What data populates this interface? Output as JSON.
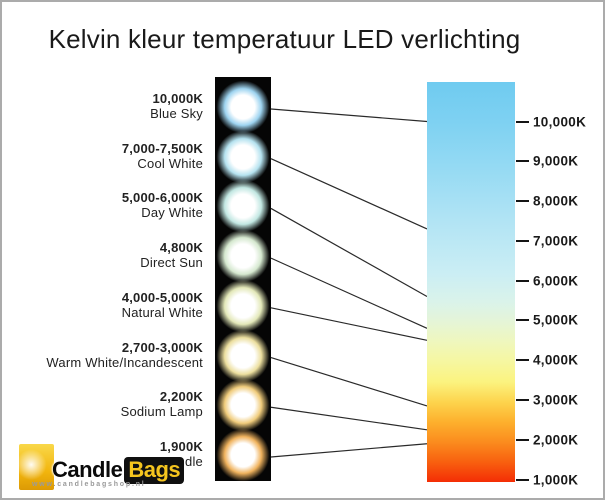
{
  "title": "Kelvin kleur temperatuur LED verlichting",
  "items": [
    {
      "kelvin": "10,000K",
      "name": "Blue Sky",
      "target_kelvin": 10000,
      "glow": "#9ed4f0"
    },
    {
      "kelvin": "7,000-7,500K",
      "name": "Cool White",
      "target_kelvin": 7300,
      "glow": "#b5e2ef"
    },
    {
      "kelvin": "5,000-6,000K",
      "name": "Day White",
      "target_kelvin": 5600,
      "glow": "#c2e7e2"
    },
    {
      "kelvin": "4,800K",
      "name": "Direct Sun",
      "target_kelvin": 4800,
      "glow": "#d5e8cf"
    },
    {
      "kelvin": "4,000-5,000K",
      "name": "Natural White",
      "target_kelvin": 4500,
      "glow": "#e3e8b9"
    },
    {
      "kelvin": "2,700-3,000K",
      "name": "Warm White/Incandescent",
      "target_kelvin": 2850,
      "glow": "#ecdf9f"
    },
    {
      "kelvin": "2,200K",
      "name": "Sodium Lamp",
      "target_kelvin": 2250,
      "glow": "#f0cc7c"
    },
    {
      "kelvin": "1,900K",
      "name": "Candle",
      "target_kelvin": 1900,
      "glow": "#f0b35e"
    }
  ],
  "scale": {
    "tick_labels": [
      "10,000K",
      "9,000K",
      "8,000K",
      "7,000K",
      "6,000K",
      "5,000K",
      "4,000K",
      "3,000K",
      "2,000K",
      "1,000K"
    ]
  },
  "gradient": {
    "stops": [
      [
        0,
        "#6fcbf0"
      ],
      [
        10,
        "#7ed1f2"
      ],
      [
        20,
        "#92d9f3"
      ],
      [
        35,
        "#b2e4f4"
      ],
      [
        48,
        "#cbeef4"
      ],
      [
        55,
        "#daf3ea"
      ],
      [
        60,
        "#e5f5d7"
      ],
      [
        65,
        "#eff7bd"
      ],
      [
        70,
        "#f6f7a0"
      ],
      [
        75,
        "#fbf37f"
      ],
      [
        80,
        "#fdd44d"
      ],
      [
        85,
        "#fdb02d"
      ],
      [
        90,
        "#fb8c1e"
      ],
      [
        95,
        "#f8600f"
      ],
      [
        100,
        "#f42d05"
      ]
    ]
  },
  "colors": {
    "connector_line": "#2a2a2a",
    "strip_background": "#050505",
    "bulb_core": "#ffffff"
  },
  "logo": {
    "candle_text": "Candle",
    "bags_text": "Bags",
    "url": "www.candlebagshop.nl"
  }
}
